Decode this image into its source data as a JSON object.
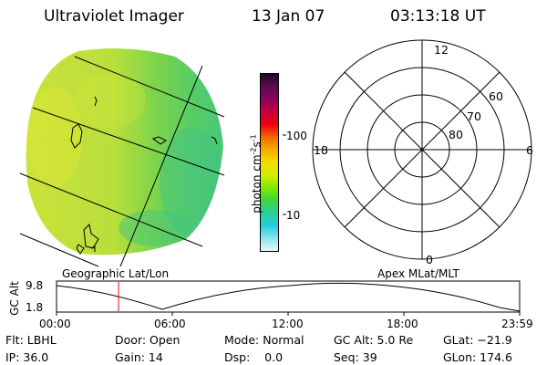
{
  "header": {
    "title": "Ultraviolet Imager",
    "date": "13 Jan 07",
    "time": "03:13:18 UT"
  },
  "map_panel": {
    "caption": "Geographic Lat/Lon"
  },
  "colorbar": {
    "unit_label_main": "photon cm",
    "unit_sup1": "-2",
    "unit_s": "s",
    "unit_sup2": "-1",
    "scale": "log",
    "ticks": [
      "100",
      "10"
    ],
    "colors_top_to_bottom": [
      "#1c0b26",
      "#5a0d4f",
      "#8c0060",
      "#c8003a",
      "#f00010",
      "#f06a00",
      "#f6ac00",
      "#f4dc00",
      "#d0ee00",
      "#86e600",
      "#3ad83a",
      "#2ad0a0",
      "#24cce0",
      "#8ee4ee",
      "#eaf6f8"
    ]
  },
  "polar_plot": {
    "caption": "Apex MLat/MLT",
    "mlt_labels": {
      "top": "12",
      "left": "18",
      "right": "6",
      "bottom": "0"
    },
    "lat_labels": [
      "60",
      "70",
      "80"
    ]
  },
  "altitude_strip": {
    "axis_label": "GC Alt",
    "y_ticks": [
      "9.8",
      "1.8"
    ],
    "x_ticks": [
      "00:00",
      "06:00",
      "12:00",
      "18:00",
      "23:59"
    ],
    "current_time_marker_color": "#ff0000"
  },
  "status": {
    "flt": "Flt: LBHL",
    "ip": "IP: 36.0",
    "door": "Door: Open",
    "gain": "Gain: 14",
    "mode": "Mode: Normal",
    "dsp": "Dsp:    0.0",
    "gc_alt": "GC Alt: 5.0 Re",
    "seq": "Seq: 39",
    "glat": "GLat: −21.9",
    "glon": "GLon: 174.6"
  }
}
